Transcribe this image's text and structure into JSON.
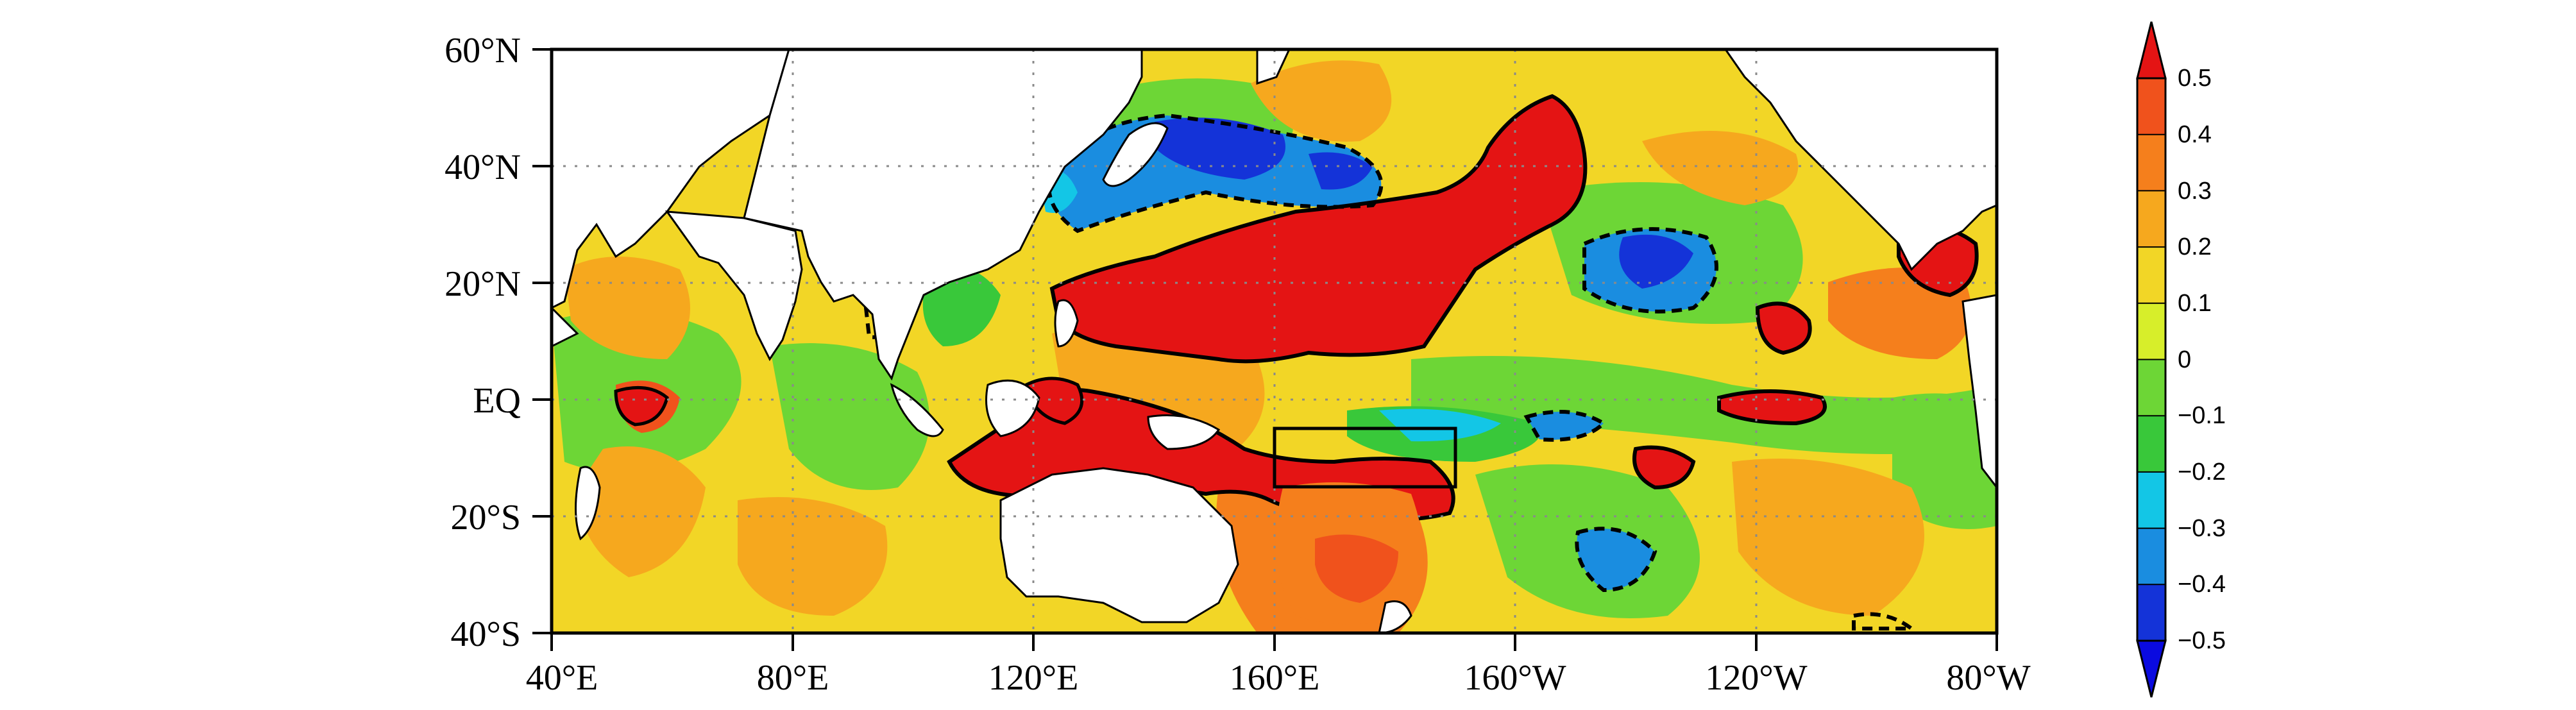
{
  "map": {
    "lat_ticks": [
      "60°N",
      "40°N",
      "20°N",
      "EQ",
      "20°S",
      "40°S"
    ],
    "lon_ticks": [
      "40°E",
      "80°E",
      "120°E",
      "160°E",
      "160°W",
      "120°W",
      "80°W"
    ],
    "extent": {
      "lon_min": 40,
      "lon_max": 280,
      "lat_min": -40,
      "lat_max": 60
    },
    "region_box": {
      "lon_min": 160,
      "lon_max": 190,
      "lat_min": -15,
      "lat_max": -5
    },
    "gridlines": "dotted",
    "colors": {
      "land": "#ffffff",
      "coast": "#000000",
      "contour": "#000000"
    }
  },
  "colorbar": {
    "labels": [
      "0.5",
      "0.4",
      "0.3",
      "0.2",
      "0.1",
      "0",
      "−0.1",
      "−0.2",
      "−0.3",
      "−0.4",
      "−0.5"
    ],
    "colors": [
      "#e41414",
      "#f0521c",
      "#f57f1c",
      "#f6a81e",
      "#f2d626",
      "#d7ee2a",
      "#6dd636",
      "#39c83a",
      "#13c6e6",
      "#1a8de0",
      "#1433d8",
      "#0a0ae0"
    ],
    "extend": "both",
    "range": [
      -0.5,
      0.5
    ],
    "step": 0.1
  }
}
